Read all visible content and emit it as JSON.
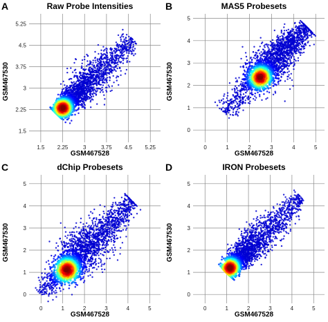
{
  "chart_data": [
    {
      "type": "scatter",
      "panel_letter": "A",
      "title": "Raw Probe Intensities",
      "xlabel": "GSM467528",
      "ylabel": "GSM467530",
      "xlim": [
        1.1,
        5.6
      ],
      "ylim": [
        1.1,
        5.6
      ],
      "xticks": [
        1.5,
        2.25,
        3,
        3.75,
        4.5,
        5.25
      ],
      "xtick_labels": [
        "1.5",
        "2.25",
        "3",
        "3.75",
        "4.5",
        "5.25"
      ],
      "yticks": [
        1.5,
        2.25,
        3,
        3.75,
        4.5,
        5.25
      ],
      "ytick_labels": [
        "1.5",
        "2.25",
        "3",
        "3.75",
        "4.5",
        "5.25"
      ],
      "grid": true,
      "density_ridge": {
        "x": [
          2.05,
          4.65
        ],
        "y": [
          2.1,
          4.7
        ]
      },
      "density_peak": {
        "x": 2.25,
        "y": 2.3
      }
    },
    {
      "type": "scatter",
      "panel_letter": "B",
      "title": "MAS5 Probesets",
      "xlabel": "GSM467528",
      "ylabel": "GSM467530",
      "xlim": [
        -0.55,
        5.4
      ],
      "ylim": [
        -0.55,
        5.2
      ],
      "xticks": [
        0,
        1,
        2,
        3,
        4,
        5
      ],
      "xtick_labels": [
        "0",
        "1",
        "2",
        "3",
        "4",
        "5"
      ],
      "yticks": [
        0,
        1,
        2,
        3,
        4,
        5
      ],
      "ytick_labels": [
        "0",
        "1",
        "2",
        "3",
        "4",
        "5"
      ],
      "grid": true,
      "density_ridge": {
        "x": [
          0.8,
          4.6
        ],
        "y": [
          0.8,
          4.6
        ]
      },
      "density_peak": {
        "x": 2.5,
        "y": 2.35
      }
    },
    {
      "type": "scatter",
      "panel_letter": "C",
      "title": "dChip Probesets",
      "xlabel": "GSM467528",
      "ylabel": "GSM467530",
      "xlim": [
        -0.55,
        5.5
      ],
      "ylim": [
        -0.4,
        5.4
      ],
      "xticks": [
        0,
        1,
        2,
        3,
        4,
        5
      ],
      "xtick_labels": [
        "0",
        "1",
        "2",
        "3",
        "4",
        "5"
      ],
      "yticks": [
        0,
        1,
        2,
        3,
        4,
        5
      ],
      "ytick_labels": [
        "0",
        "1",
        "2",
        "3",
        "4",
        "5"
      ],
      "grid": true,
      "density_ridge": {
        "x": [
          0.0,
          4.2
        ],
        "y": [
          0.0,
          4.2
        ]
      },
      "density_peak": {
        "x": 1.2,
        "y": 1.1
      }
    },
    {
      "type": "scatter",
      "panel_letter": "D",
      "title": "IRON Probesets",
      "xlabel": "GSM467528",
      "ylabel": "GSM467530",
      "xlim": [
        -0.55,
        5.5
      ],
      "ylim": [
        -0.4,
        5.4
      ],
      "xticks": [
        0,
        1,
        2,
        3,
        4,
        5
      ],
      "xtick_labels": [
        "0",
        "1",
        "2",
        "3",
        "4",
        "5"
      ],
      "yticks": [
        0,
        1,
        2,
        3,
        4,
        5
      ],
      "ytick_labels": [
        "0",
        "1",
        "2",
        "3",
        "4",
        "5"
      ],
      "grid": true,
      "density_ridge": {
        "x": [
          1.0,
          4.4
        ],
        "y": [
          1.0,
          4.4
        ]
      },
      "density_peak": {
        "x": 1.15,
        "y": 1.2
      }
    }
  ]
}
